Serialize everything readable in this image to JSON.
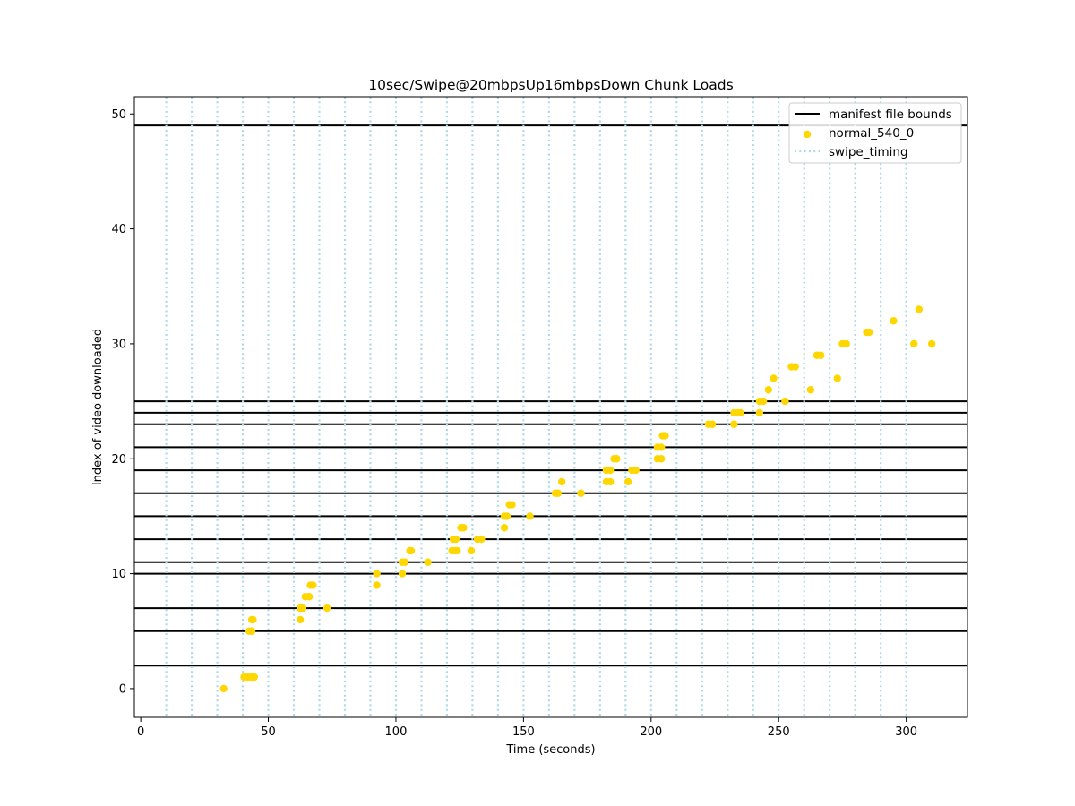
{
  "chart_data": {
    "type": "scatter",
    "title": "10sec/Swipe@20mbpsUp16mbpsDown Chunk Loads",
    "xlabel": "Time (seconds)",
    "ylabel": "Index of video downloaded",
    "xlim": [
      -2.5,
      324
    ],
    "ylim": [
      -2.5,
      51.5
    ],
    "xticks": [
      0,
      50,
      100,
      150,
      200,
      250,
      300
    ],
    "yticks": [
      0,
      10,
      20,
      30,
      40,
      50
    ],
    "grid": false,
    "legend_position": "top-right",
    "legend": [
      {
        "label": "manifest file bounds",
        "kind": "line",
        "color": "#000000"
      },
      {
        "label": "normal_540_0",
        "kind": "marker",
        "color": "#FFD700"
      },
      {
        "label": "swipe_timing",
        "kind": "dotted",
        "color": "#ADD8E6"
      }
    ],
    "manifest_file_bounds": [
      2,
      5,
      7,
      10,
      11,
      13,
      15,
      17,
      19,
      21,
      23,
      24,
      25,
      49
    ],
    "swipe_timing": [
      10,
      20,
      30,
      40,
      50,
      60,
      70,
      80,
      90,
      100,
      110,
      120,
      130,
      140,
      150,
      160,
      170,
      180,
      190,
      200,
      210,
      220,
      230,
      240,
      250,
      260,
      270,
      280,
      290,
      300
    ],
    "series": [
      {
        "name": "normal_540_0",
        "color": "#FFD700",
        "points": [
          [
            32.5,
            0
          ],
          [
            40.5,
            1
          ],
          [
            42,
            1
          ],
          [
            43.5,
            1
          ],
          [
            44.5,
            1
          ],
          [
            42.5,
            5
          ],
          [
            43.5,
            5
          ],
          [
            43.5,
            6
          ],
          [
            44,
            6
          ],
          [
            62.5,
            6
          ],
          [
            62.5,
            7
          ],
          [
            63.5,
            7
          ],
          [
            64.5,
            8
          ],
          [
            66,
            8
          ],
          [
            66.5,
            9
          ],
          [
            67.5,
            9
          ],
          [
            73,
            7
          ],
          [
            92.5,
            9
          ],
          [
            92.5,
            10
          ],
          [
            102.5,
            10
          ],
          [
            102.5,
            11
          ],
          [
            103.5,
            11
          ],
          [
            105.5,
            12
          ],
          [
            106,
            12
          ],
          [
            112.5,
            11
          ],
          [
            122,
            12
          ],
          [
            123,
            12
          ],
          [
            124,
            12
          ],
          [
            122.5,
            13
          ],
          [
            123.5,
            13
          ],
          [
            125.5,
            14
          ],
          [
            126.5,
            14
          ],
          [
            129.5,
            12
          ],
          [
            132,
            13
          ],
          [
            133.5,
            13
          ],
          [
            142.5,
            14
          ],
          [
            142.5,
            15
          ],
          [
            143.5,
            15
          ],
          [
            144.5,
            16
          ],
          [
            145.5,
            16
          ],
          [
            152.5,
            15
          ],
          [
            162.5,
            17
          ],
          [
            163.5,
            17
          ],
          [
            165,
            18
          ],
          [
            172.5,
            17
          ],
          [
            182.5,
            18
          ],
          [
            184,
            18
          ],
          [
            182.5,
            19
          ],
          [
            184,
            19
          ],
          [
            185.5,
            20
          ],
          [
            186.5,
            20
          ],
          [
            191,
            18
          ],
          [
            192.5,
            19
          ],
          [
            194,
            19
          ],
          [
            202.5,
            20
          ],
          [
            204,
            20
          ],
          [
            202.5,
            21
          ],
          [
            204,
            21
          ],
          [
            204.5,
            22
          ],
          [
            205.5,
            22
          ],
          [
            222.5,
            23
          ],
          [
            224,
            23
          ],
          [
            232.5,
            23
          ],
          [
            232.5,
            24
          ],
          [
            234,
            24
          ],
          [
            235,
            24
          ],
          [
            242.5,
            24
          ],
          [
            242.5,
            25
          ],
          [
            244,
            25
          ],
          [
            246,
            26
          ],
          [
            248,
            27
          ],
          [
            252.5,
            25
          ],
          [
            255,
            28
          ],
          [
            256.5,
            28
          ],
          [
            262.5,
            26
          ],
          [
            265,
            29
          ],
          [
            266.5,
            29
          ],
          [
            273,
            27
          ],
          [
            275,
            30
          ],
          [
            276.5,
            30
          ],
          [
            284.5,
            31
          ],
          [
            285.5,
            31
          ],
          [
            295,
            32
          ],
          [
            303,
            30
          ],
          [
            305,
            33
          ],
          [
            310,
            30
          ]
        ]
      }
    ]
  }
}
